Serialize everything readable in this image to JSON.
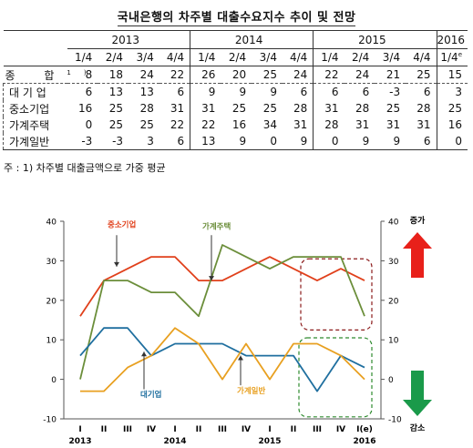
{
  "title": "국내은행의 차주별 대출수요지수 추이 및 전망",
  "table": {
    "years": [
      "2013",
      "2014",
      "2015",
      "2016"
    ],
    "quarters": [
      "1/4",
      "2/4",
      "3/4",
      "4/4",
      "1/4",
      "2/4",
      "3/4",
      "4/4",
      "1/4",
      "2/4",
      "3/4",
      "4/4",
      "1/4"
    ],
    "forecast_mark": "e",
    "rows": [
      {
        "label": "종 합",
        "sup": "1)",
        "values": [
          "8",
          "18",
          "24",
          "22",
          "26",
          "20",
          "25",
          "24",
          "22",
          "24",
          "21",
          "25",
          "15"
        ]
      },
      {
        "label": "대 기 업",
        "values": [
          "6",
          "13",
          "13",
          "6",
          "9",
          "9",
          "9",
          "6",
          "6",
          "6",
          "-3",
          "6",
          "3"
        ]
      },
      {
        "label": "중소기업",
        "values": [
          "16",
          "25",
          "28",
          "31",
          "31",
          "25",
          "25",
          "28",
          "31",
          "28",
          "25",
          "28",
          "25"
        ]
      },
      {
        "label": "가계주택",
        "values": [
          "0",
          "25",
          "25",
          "22",
          "22",
          "16",
          "34",
          "31",
          "28",
          "31",
          "31",
          "31",
          "16"
        ]
      },
      {
        "label": "가계일반",
        "values": [
          "-3",
          "-3",
          "3",
          "6",
          "13",
          "9",
          "0",
          "9",
          "0",
          "9",
          "9",
          "6",
          "0"
        ]
      }
    ]
  },
  "note": "주 :  1) 차주별 대출금액으로 가중 평균",
  "chart_data": {
    "type": "line",
    "x": [
      "I",
      "II",
      "III",
      "IV",
      "I",
      "II",
      "III",
      "IV",
      "I",
      "II",
      "III",
      "IV",
      "I(e)"
    ],
    "year_labels": [
      {
        "label": "2013",
        "at": 0
      },
      {
        "label": "2014",
        "at": 4
      },
      {
        "label": "2015",
        "at": 8
      },
      {
        "label": "2016",
        "at": 12
      }
    ],
    "ylim": [
      -10,
      40
    ],
    "yticks": [
      -10,
      0,
      10,
      20,
      30,
      40
    ],
    "series": [
      {
        "name": "중소기업",
        "color": "#e0401b",
        "values": [
          16,
          25,
          28,
          31,
          31,
          25,
          25,
          28,
          31,
          28,
          25,
          28,
          25
        ]
      },
      {
        "name": "가계주택",
        "color": "#6b8e3a",
        "values": [
          0,
          25,
          25,
          22,
          22,
          16,
          34,
          31,
          28,
          31,
          31,
          31,
          16
        ]
      },
      {
        "name": "대기업",
        "color": "#1f6f9f",
        "values": [
          6,
          13,
          13,
          6,
          9,
          9,
          9,
          6,
          6,
          6,
          -3,
          6,
          3
        ]
      },
      {
        "name": "가계일반",
        "color": "#e8a020",
        "values": [
          -3,
          -3,
          3,
          6,
          13,
          9,
          0,
          9,
          0,
          9,
          9,
          6,
          0
        ]
      }
    ],
    "legend_up": "증가",
    "legend_down": "감소",
    "up_color": "#e8201a",
    "down_color": "#1a9a4a"
  }
}
